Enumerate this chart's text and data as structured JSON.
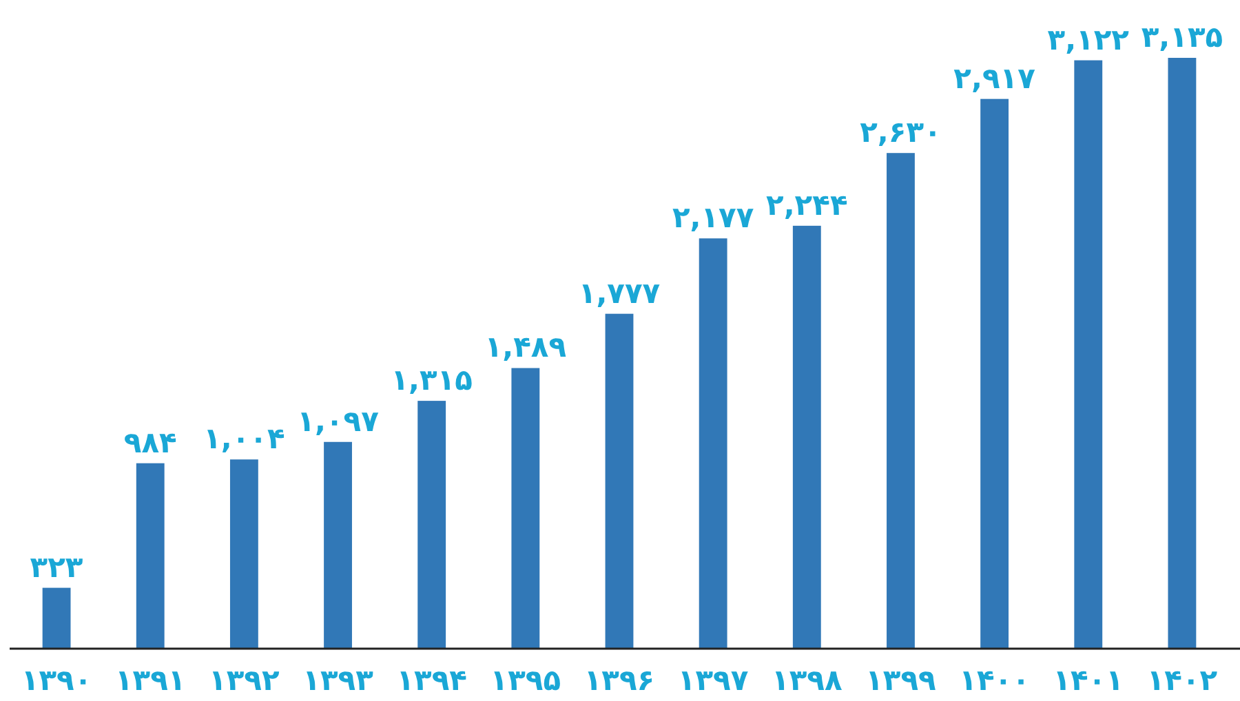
{
  "chart_data": {
    "type": "bar",
    "categories": [
      "۱۳۹۰",
      "۱۳۹۱",
      "۱۳۹۲",
      "۱۳۹۳",
      "۱۳۹۴",
      "۱۳۹۵",
      "۱۳۹۶",
      "۱۳۹۷",
      "۱۳۹۸",
      "۱۳۹۹",
      "۱۴۰۰",
      "۱۴۰۱",
      "۱۴۰۲"
    ],
    "values": [
      323,
      984,
      1004,
      1097,
      1315,
      1489,
      1777,
      2177,
      2244,
      2630,
      2917,
      3122,
      3135
    ],
    "value_labels": [
      "۳۲۳",
      "۹۸۴",
      "۱,۰۰۴",
      "۱,۰۹۷",
      "۱,۳۱۵",
      "۱,۴۸۹",
      "۱,۷۷۷",
      "۲,۱۷۷",
      "۲,۲۴۴",
      "۲,۶۳۰",
      "۲,۹۱۷",
      "۳,۱۲۲",
      "۳,۱۳۵"
    ],
    "color": "#3178b7"
  }
}
